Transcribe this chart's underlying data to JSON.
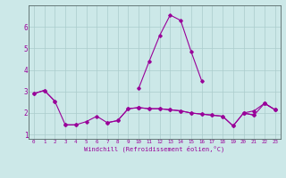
{
  "xlabel": "Windchill (Refroidissement éolien,°C)",
  "background_color": "#cce8e8",
  "grid_color": "#aacccc",
  "line_color": "#990099",
  "x": [
    0,
    1,
    2,
    3,
    4,
    5,
    6,
    7,
    8,
    9,
    10,
    11,
    12,
    13,
    14,
    15,
    16,
    17,
    18,
    19,
    20,
    21,
    22,
    23
  ],
  "line1": [
    2.9,
    3.05,
    2.55,
    null,
    null,
    null,
    null,
    null,
    null,
    null,
    3.15,
    4.4,
    5.6,
    6.55,
    6.3,
    4.85,
    3.5,
    null,
    null,
    null,
    null,
    null,
    2.45,
    2.15
  ],
  "line2": [
    2.9,
    3.05,
    2.55,
    1.45,
    1.45,
    null,
    null,
    null,
    null,
    null,
    2.25,
    null,
    null,
    null,
    null,
    null,
    null,
    null,
    null,
    null,
    2.0,
    2.1,
    2.45,
    2.15
  ],
  "line3": [
    null,
    null,
    null,
    1.45,
    1.45,
    1.6,
    1.85,
    1.55,
    1.65,
    2.2,
    2.25,
    2.2,
    2.2,
    2.15,
    2.1,
    2.0,
    1.95,
    1.9,
    1.85,
    1.4,
    2.0,
    1.9,
    2.45,
    2.15
  ],
  "line4": [
    null,
    null,
    null,
    null,
    null,
    null,
    null,
    1.55,
    1.65,
    2.2,
    2.25,
    2.2,
    2.2,
    2.15,
    2.1,
    2.0,
    1.95,
    1.9,
    1.85,
    1.4,
    2.0,
    1.9,
    null,
    null
  ],
  "ylim": [
    0.8,
    7.0
  ],
  "xlim": [
    -0.5,
    23.5
  ],
  "yticks": [
    1,
    2,
    3,
    4,
    5,
    6
  ],
  "xticks": [
    0,
    1,
    2,
    3,
    4,
    5,
    6,
    7,
    8,
    9,
    10,
    11,
    12,
    13,
    14,
    15,
    16,
    17,
    18,
    19,
    20,
    21,
    22,
    23
  ],
  "xtick_labels": [
    "0",
    "1",
    "2",
    "3",
    "4",
    "5",
    "6",
    "7",
    "8",
    "9",
    "10",
    "11",
    "12",
    "13",
    "14",
    "15",
    "16",
    "17",
    "18",
    "19",
    "20",
    "21",
    "22",
    "23"
  ],
  "fig_width": 3.2,
  "fig_height": 2.0,
  "dpi": 100
}
